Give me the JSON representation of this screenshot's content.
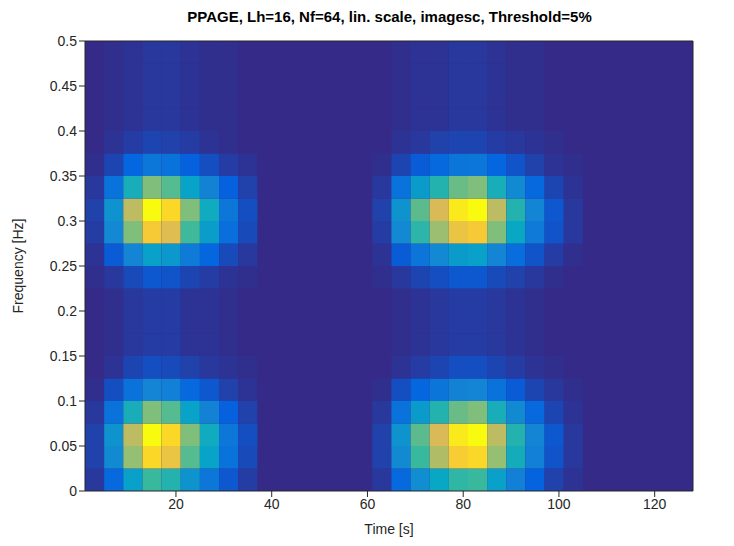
{
  "chart_data": {
    "type": "heatmap",
    "title": "PPAGE, Lh=16, Nf=64, lin. scale, imagesc, Threshold=5%",
    "xlabel": "Time [s]",
    "ylabel": "Frequency [Hz]",
    "xlim": [
      1,
      128
    ],
    "ylim": [
      0,
      0.5
    ],
    "xticks": [
      20,
      40,
      60,
      80,
      100,
      120
    ],
    "yticks": [
      0,
      0.05,
      0.1,
      0.15,
      0.2,
      0.25,
      0.3,
      0.35,
      0.4,
      0.45,
      0.5
    ],
    "x_bins": [
      1,
      5,
      9,
      13,
      17,
      21,
      25,
      29,
      33,
      37,
      41,
      45,
      49,
      53,
      57,
      61,
      65,
      69,
      73,
      77,
      81,
      85,
      89,
      93,
      97,
      101,
      105,
      109,
      113,
      117,
      121,
      125,
      128
    ],
    "y_bins": [
      0,
      0.025,
      0.05,
      0.075,
      0.1,
      0.125,
      0.15,
      0.175,
      0.2,
      0.225,
      0.25,
      0.275,
      0.3,
      0.325,
      0.35,
      0.375,
      0.4,
      0.425,
      0.45,
      0.475,
      0.5
    ],
    "cells": [
      [
        0.03,
        0.15,
        0.35,
        0.5,
        0.45,
        0.3,
        0.2,
        0.1,
        0.04,
        0,
        0,
        0,
        0,
        0,
        0,
        0.03,
        0.15,
        0.28,
        0.38,
        0.48,
        0.5,
        0.35,
        0.23,
        0.13,
        0.05,
        0.02,
        0,
        0,
        0,
        0,
        0,
        0
      ],
      [
        0.05,
        0.27,
        0.63,
        0.9,
        0.81,
        0.54,
        0.36,
        0.18,
        0.07,
        0,
        0,
        0,
        0,
        0,
        0,
        0.05,
        0.27,
        0.5,
        0.68,
        0.86,
        0.9,
        0.63,
        0.41,
        0.23,
        0.09,
        0.03,
        0,
        0,
        0,
        0,
        0,
        0
      ],
      [
        0.05,
        0.3,
        0.7,
        1,
        0.9,
        0.6,
        0.4,
        0.2,
        0.08,
        0,
        0,
        0,
        0,
        0,
        0,
        0.05,
        0.3,
        0.55,
        0.75,
        0.95,
        1,
        0.7,
        0.45,
        0.25,
        0.1,
        0.03,
        0,
        0,
        0,
        0,
        0,
        0
      ],
      [
        0.03,
        0.18,
        0.42,
        0.6,
        0.54,
        0.36,
        0.24,
        0.12,
        0.05,
        0,
        0,
        0,
        0,
        0,
        0,
        0.03,
        0.18,
        0.33,
        0.45,
        0.57,
        0.6,
        0.42,
        0.27,
        0.15,
        0.06,
        0.02,
        0,
        0,
        0,
        0,
        0,
        0
      ],
      [
        0.01,
        0.08,
        0.18,
        0.25,
        0.23,
        0.15,
        0.1,
        0.05,
        0.02,
        0,
        0,
        0,
        0,
        0,
        0,
        0.01,
        0.08,
        0.14,
        0.19,
        0.24,
        0.25,
        0.18,
        0.11,
        0.06,
        0.03,
        0.01,
        0,
        0,
        0,
        0,
        0,
        0
      ],
      [
        0,
        0.02,
        0.06,
        0.08,
        0.07,
        0.05,
        0.03,
        0.02,
        0.01,
        0,
        0,
        0,
        0,
        0,
        0,
        0,
        0.02,
        0.04,
        0.06,
        0.08,
        0.08,
        0.06,
        0.04,
        0.02,
        0.01,
        0,
        0,
        0,
        0,
        0,
        0,
        0
      ],
      [
        0,
        0.01,
        0.03,
        0.04,
        0.04,
        0.02,
        0.02,
        0.01,
        0,
        0,
        0,
        0,
        0,
        0,
        0,
        0,
        0.01,
        0.02,
        0.03,
        0.04,
        0.04,
        0.03,
        0.02,
        0.01,
        0,
        0,
        0,
        0,
        0,
        0,
        0,
        0
      ],
      [
        0,
        0.01,
        0.03,
        0.04,
        0.04,
        0.02,
        0.02,
        0.01,
        0,
        0,
        0,
        0,
        0,
        0,
        0,
        0,
        0.01,
        0.02,
        0.03,
        0.04,
        0.04,
        0.03,
        0.02,
        0.01,
        0,
        0,
        0,
        0,
        0,
        0,
        0,
        0
      ],
      [
        0,
        0.01,
        0.03,
        0.04,
        0.04,
        0.02,
        0.02,
        0.01,
        0,
        0,
        0,
        0,
        0,
        0,
        0,
        0,
        0.01,
        0.02,
        0.03,
        0.04,
        0.04,
        0.03,
        0.02,
        0.01,
        0,
        0,
        0,
        0,
        0,
        0,
        0,
        0
      ],
      [
        0.01,
        0.03,
        0.07,
        0.1,
        0.09,
        0.06,
        0.04,
        0.02,
        0.01,
        0,
        0,
        0,
        0,
        0,
        0,
        0.01,
        0.03,
        0.06,
        0.08,
        0.1,
        0.1,
        0.07,
        0.05,
        0.03,
        0.01,
        0,
        0,
        0,
        0,
        0,
        0,
        0
      ],
      [
        0.02,
        0.11,
        0.25,
        0.35,
        0.32,
        0.21,
        0.14,
        0.07,
        0.03,
        0,
        0,
        0,
        0,
        0,
        0,
        0.02,
        0.11,
        0.19,
        0.26,
        0.33,
        0.35,
        0.25,
        0.16,
        0.09,
        0.04,
        0.01,
        0,
        0,
        0,
        0,
        0,
        0
      ],
      [
        0.04,
        0.26,
        0.6,
        0.85,
        0.77,
        0.51,
        0.34,
        0.17,
        0.07,
        0,
        0,
        0,
        0,
        0,
        0,
        0.04,
        0.26,
        0.47,
        0.64,
        0.81,
        0.85,
        0.6,
        0.38,
        0.21,
        0.09,
        0.03,
        0,
        0,
        0,
        0,
        0,
        0
      ],
      [
        0.05,
        0.3,
        0.7,
        1,
        0.9,
        0.6,
        0.4,
        0.2,
        0.08,
        0,
        0,
        0,
        0,
        0,
        0,
        0.05,
        0.3,
        0.55,
        0.75,
        0.95,
        1,
        0.7,
        0.45,
        0.25,
        0.1,
        0.03,
        0,
        0,
        0,
        0,
        0,
        0
      ],
      [
        0.03,
        0.18,
        0.42,
        0.6,
        0.54,
        0.36,
        0.24,
        0.12,
        0.05,
        0,
        0,
        0,
        0,
        0,
        0,
        0.03,
        0.18,
        0.33,
        0.45,
        0.57,
        0.6,
        0.42,
        0.27,
        0.15,
        0.06,
        0.02,
        0,
        0,
        0,
        0,
        0,
        0
      ],
      [
        0.01,
        0.06,
        0.14,
        0.2,
        0.18,
        0.12,
        0.08,
        0.04,
        0.02,
        0,
        0,
        0,
        0,
        0,
        0,
        0.01,
        0.06,
        0.11,
        0.15,
        0.19,
        0.2,
        0.14,
        0.09,
        0.05,
        0.02,
        0.01,
        0,
        0,
        0,
        0,
        0,
        0
      ],
      [
        0,
        0.02,
        0.04,
        0.06,
        0.05,
        0.04,
        0.02,
        0.01,
        0,
        0,
        0,
        0,
        0,
        0,
        0,
        0,
        0.02,
        0.03,
        0.05,
        0.06,
        0.06,
        0.04,
        0.03,
        0.02,
        0.01,
        0,
        0,
        0,
        0,
        0,
        0,
        0
      ],
      [
        0,
        0.01,
        0.02,
        0.03,
        0.03,
        0.02,
        0.01,
        0.01,
        0,
        0,
        0,
        0,
        0,
        0,
        0,
        0,
        0.01,
        0.02,
        0.02,
        0.03,
        0.03,
        0.02,
        0.01,
        0.01,
        0,
        0,
        0,
        0,
        0,
        0,
        0,
        0
      ],
      [
        0,
        0.01,
        0.02,
        0.03,
        0.03,
        0.02,
        0.01,
        0.01,
        0,
        0,
        0,
        0,
        0,
        0,
        0,
        0,
        0.01,
        0.02,
        0.02,
        0.03,
        0.03,
        0.02,
        0.01,
        0.01,
        0,
        0,
        0,
        0,
        0,
        0,
        0,
        0
      ],
      [
        0,
        0.01,
        0.02,
        0.03,
        0.03,
        0.02,
        0.01,
        0.01,
        0,
        0,
        0,
        0,
        0,
        0,
        0,
        0,
        0.01,
        0.02,
        0.02,
        0.03,
        0.03,
        0.02,
        0.01,
        0.01,
        0,
        0,
        0,
        0,
        0,
        0,
        0,
        0
      ],
      [
        0,
        0.01,
        0.02,
        0.03,
        0.03,
        0.02,
        0.01,
        0.01,
        0,
        0,
        0,
        0,
        0,
        0,
        0,
        0,
        0.01,
        0.02,
        0.02,
        0.03,
        0.03,
        0.02,
        0.01,
        0.01,
        0,
        0,
        0,
        0,
        0,
        0,
        0,
        0
      ]
    ]
  }
}
